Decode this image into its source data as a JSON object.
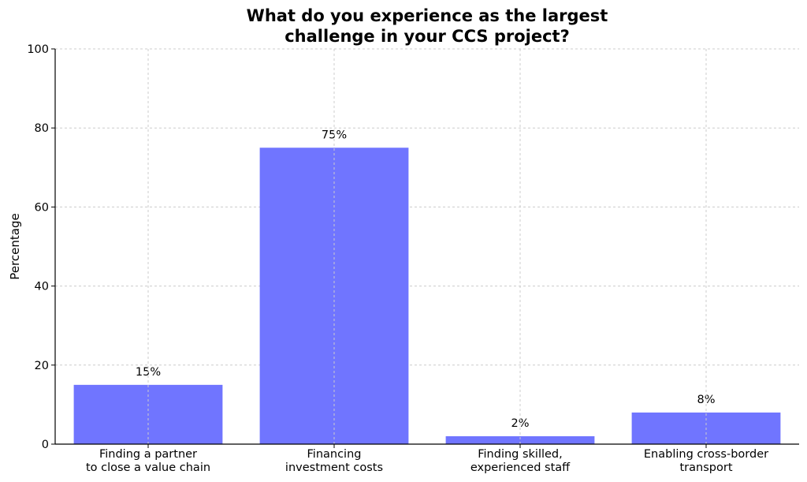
{
  "chart_data": {
    "type": "bar",
    "title": [
      "What do you experience as the largest",
      "challenge in your CCS project?"
    ],
    "xlabel": "",
    "ylabel": "Percentage",
    "ylim": [
      0,
      100
    ],
    "yticks": [
      0,
      20,
      40,
      60,
      80,
      100
    ],
    "grid": true,
    "categories": [
      [
        "Finding a partner",
        "to close a value chain"
      ],
      [
        "Financing",
        "investment costs"
      ],
      [
        "Finding skilled,",
        "experienced staff"
      ],
      [
        "Enabling cross-border",
        "transport"
      ]
    ],
    "values": [
      15,
      75,
      2,
      8
    ],
    "data_labels": [
      "15%",
      "75%",
      "2%",
      "8%"
    ],
    "bar_color": "#7075ff"
  }
}
